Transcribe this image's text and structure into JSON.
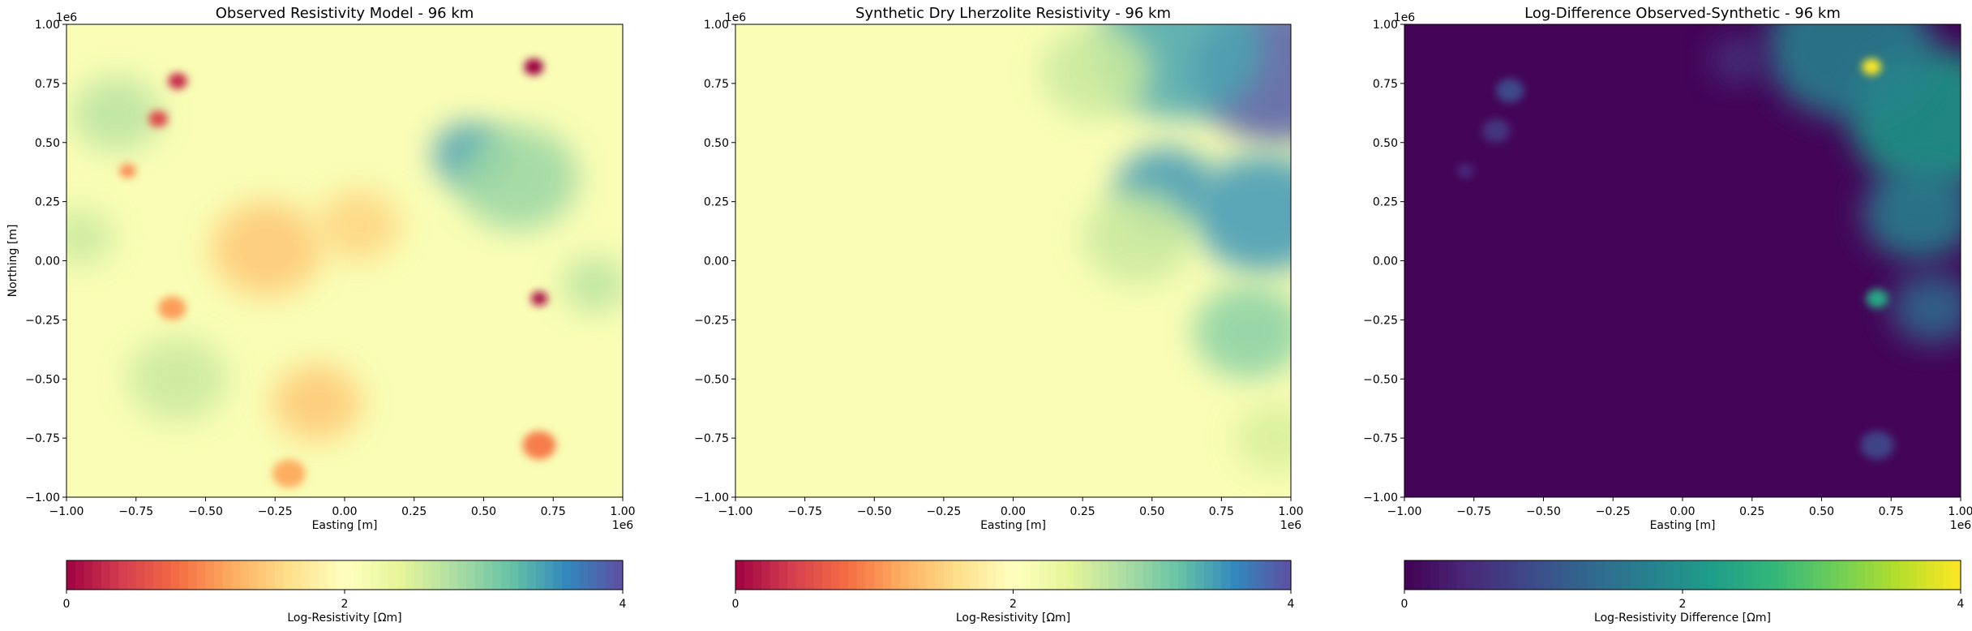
{
  "chart_data": [
    {
      "type": "heatmap",
      "title": "Observed Resistivity Model - 96 km",
      "xlabel": "Easting [m]",
      "ylabel": "Northing [m]",
      "xlim": [
        -1000000,
        1000000
      ],
      "ylim": [
        -1000000,
        1000000
      ],
      "x_ticks": [
        "−1.00",
        "−0.75",
        "−0.50",
        "−0.25",
        "0.00",
        "0.25",
        "0.50",
        "0.75",
        "1.00"
      ],
      "y_ticks": [
        "1.00",
        "0.75",
        "0.50",
        "0.25",
        "0.00",
        "−0.25",
        "−0.50",
        "−0.75",
        "−1.00"
      ],
      "x_offset": "1e6",
      "y_offset": "1e6",
      "colormap": "Spectral",
      "color_range": [
        0,
        4
      ],
      "colorbar_label": "Log-Resistivity [Ωm]",
      "colorbar_ticks": [
        "0",
        "2",
        "4"
      ],
      "features": [
        {
          "x": -0.82,
          "y": 0.62,
          "value": 2.7,
          "r": 0.16
        },
        {
          "x": 0.45,
          "y": 0.45,
          "value": 3.5,
          "r": 0.13
        },
        {
          "x": 0.62,
          "y": 0.35,
          "value": 2.9,
          "r": 0.22
        },
        {
          "x": -0.95,
          "y": 0.1,
          "value": 2.6,
          "r": 0.12
        },
        {
          "x": -0.6,
          "y": -0.5,
          "value": 2.6,
          "r": 0.18
        },
        {
          "x": 0.9,
          "y": -0.1,
          "value": 2.7,
          "r": 0.12
        },
        {
          "x": -0.6,
          "y": 0.76,
          "value": 0.3,
          "r": 0.035
        },
        {
          "x": -0.67,
          "y": 0.6,
          "value": 0.5,
          "r": 0.035
        },
        {
          "x": -0.78,
          "y": 0.38,
          "value": 1.0,
          "r": 0.03
        },
        {
          "x": 0.68,
          "y": 0.82,
          "value": 0.0,
          "r": 0.035
        },
        {
          "x": 0.7,
          "y": -0.16,
          "value": 0.1,
          "r": 0.03
        },
        {
          "x": -0.62,
          "y": -0.2,
          "value": 1.1,
          "r": 0.05
        },
        {
          "x": -0.28,
          "y": 0.05,
          "value": 1.4,
          "r": 0.2
        },
        {
          "x": 0.05,
          "y": 0.15,
          "value": 1.5,
          "r": 0.15
        },
        {
          "x": -0.1,
          "y": -0.6,
          "value": 1.4,
          "r": 0.16
        },
        {
          "x": 0.7,
          "y": -0.78,
          "value": 0.9,
          "r": 0.06
        },
        {
          "x": -0.2,
          "y": -0.9,
          "value": 1.2,
          "r": 0.06
        }
      ]
    },
    {
      "type": "heatmap",
      "title": "Synthetic Dry Lherzolite Resistivity - 96 km",
      "xlabel": "Easting [m]",
      "ylabel": "",
      "xlim": [
        -1000000,
        1000000
      ],
      "ylim": [
        -1000000,
        1000000
      ],
      "x_ticks": [
        "−1.00",
        "−0.75",
        "−0.50",
        "−0.25",
        "0.00",
        "0.25",
        "0.50",
        "0.75",
        "1.00"
      ],
      "y_ticks": [
        "1.00",
        "0.75",
        "0.50",
        "0.25",
        "0.00",
        "−0.25",
        "−0.50",
        "−0.75",
        "−1.00"
      ],
      "x_offset": "1e6",
      "y_offset": "1e6",
      "colormap": "Spectral",
      "color_range": [
        0,
        4
      ],
      "colorbar_label": "Log-Resistivity [Ωm]",
      "colorbar_ticks": [
        "0",
        "2",
        "4"
      ],
      "features": [
        {
          "x": 0.95,
          "y": 0.8,
          "value": 3.9,
          "r": 0.3
        },
        {
          "x": 0.6,
          "y": 0.9,
          "value": 3.4,
          "r": 0.3
        },
        {
          "x": 0.55,
          "y": 0.3,
          "value": 3.5,
          "r": 0.18
        },
        {
          "x": 0.9,
          "y": 0.2,
          "value": 3.5,
          "r": 0.25
        },
        {
          "x": 0.85,
          "y": -0.3,
          "value": 3.0,
          "r": 0.2
        },
        {
          "x": 0.3,
          "y": 0.8,
          "value": 2.6,
          "r": 0.2
        },
        {
          "x": 0.95,
          "y": -0.75,
          "value": 2.5,
          "r": 0.15
        },
        {
          "x": 0.45,
          "y": 0.1,
          "value": 2.6,
          "r": 0.2
        }
      ]
    },
    {
      "type": "heatmap",
      "title": "Log-Difference Observed-Synthetic -  96 km",
      "xlabel": "Easting [m]",
      "ylabel": "",
      "xlim": [
        -1000000,
        1000000
      ],
      "ylim": [
        -1000000,
        1000000
      ],
      "x_ticks": [
        "−1.00",
        "−0.75",
        "−0.50",
        "−0.25",
        "0.00",
        "0.25",
        "0.50",
        "0.75",
        "1.00"
      ],
      "y_ticks": [
        "1.00",
        "0.75",
        "0.50",
        "0.25",
        "0.00",
        "−0.25",
        "−0.50",
        "−0.75",
        "−1.00"
      ],
      "x_offset": "1e6",
      "y_offset": "1e6",
      "colormap": "viridis",
      "color_range": [
        0,
        4
      ],
      "colorbar_label": "Log-Resistivity Difference [Ωm]",
      "colorbar_ticks": [
        "0",
        "2",
        "4"
      ],
      "features": [
        {
          "x": 0.9,
          "y": 0.6,
          "value": 2.2,
          "r": 0.3
        },
        {
          "x": 0.6,
          "y": 0.9,
          "value": 1.8,
          "r": 0.3
        },
        {
          "x": 0.85,
          "y": 0.2,
          "value": 1.8,
          "r": 0.2
        },
        {
          "x": 0.9,
          "y": -0.2,
          "value": 1.4,
          "r": 0.15
        },
        {
          "x": 0.68,
          "y": 0.82,
          "value": 4.0,
          "r": 0.035
        },
        {
          "x": 0.7,
          "y": -0.16,
          "value": 2.4,
          "r": 0.04
        },
        {
          "x": -0.62,
          "y": 0.72,
          "value": 0.9,
          "r": 0.05
        },
        {
          "x": -0.67,
          "y": 0.55,
          "value": 0.6,
          "r": 0.05
        },
        {
          "x": -0.78,
          "y": 0.38,
          "value": 0.5,
          "r": 0.03
        },
        {
          "x": 0.2,
          "y": 0.85,
          "value": 0.6,
          "r": 0.1
        },
        {
          "x": 0.7,
          "y": -0.78,
          "value": 0.8,
          "r": 0.06
        }
      ]
    }
  ]
}
